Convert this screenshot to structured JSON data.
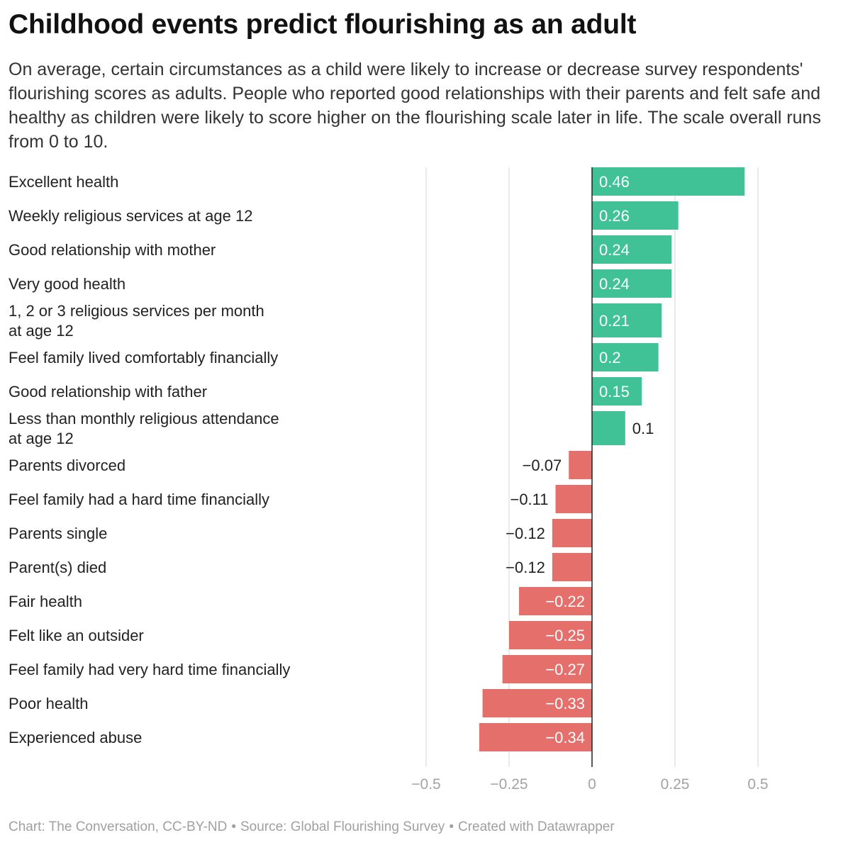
{
  "header": {
    "title": "Childhood events predict flourishing as an adult",
    "subtitle": "On average, certain circumstances as a child were likely to increase or decrease survey respondents' flourishing scores as adults. People who reported good relationships with their parents and felt safe and healthy as children were likely to score higher on the flourishing scale later in life. The scale overall runs from 0 to 10."
  },
  "footer": {
    "chart_credit": "Chart: The Conversation, CC-BY-ND",
    "source": "Source: Global Flourishing Survey",
    "tool": "Created with Datawrapper",
    "separator": "•"
  },
  "colors": {
    "positive": "#41c196",
    "negative": "#e5706b",
    "grid": "#e3e3e3",
    "axis": "#222222"
  },
  "chart_data": {
    "type": "bar",
    "orientation": "horizontal",
    "title": "Childhood events predict flourishing as an adult",
    "categories": [
      [
        "Excellent health"
      ],
      [
        "Weekly religious services at age 12"
      ],
      [
        "Good relationship with mother"
      ],
      [
        "Very good health"
      ],
      [
        "1, 2 or 3 religious services per month",
        "at age 12"
      ],
      [
        "Feel family lived comfortably financially"
      ],
      [
        "Good relationship with father"
      ],
      [
        "Less than monthly religious attendance",
        "at age 12"
      ],
      [
        "Parents divorced"
      ],
      [
        "Feel family had a hard time financially"
      ],
      [
        "Parents single"
      ],
      [
        "Parent(s) died"
      ],
      [
        "Fair health"
      ],
      [
        "Felt like an outsider"
      ],
      [
        "Feel family had very hard time financially"
      ],
      [
        "Poor health"
      ],
      [
        "Experienced abuse"
      ]
    ],
    "values": [
      0.46,
      0.26,
      0.24,
      0.24,
      0.21,
      0.2,
      0.15,
      0.1,
      -0.07,
      -0.11,
      -0.12,
      -0.12,
      -0.22,
      -0.25,
      -0.27,
      -0.33,
      -0.34
    ],
    "value_labels": [
      "0.46",
      "0.26",
      "0.24",
      "0.24",
      "0.21",
      "0.2",
      "0.15",
      "0.1",
      "−0.07",
      "−0.11",
      "−0.12",
      "−0.12",
      "−0.22",
      "−0.25",
      "−0.27",
      "−0.33",
      "−0.34"
    ],
    "xlim": [
      -0.5,
      0.5
    ],
    "x_ticks": [
      -0.5,
      -0.25,
      0,
      0.25,
      0.5
    ],
    "x_tick_labels": [
      "−0.5",
      "−0.25",
      "0",
      "0.25",
      "0.5"
    ],
    "xlabel": "",
    "ylabel": "",
    "grid": true,
    "legend": "none"
  }
}
